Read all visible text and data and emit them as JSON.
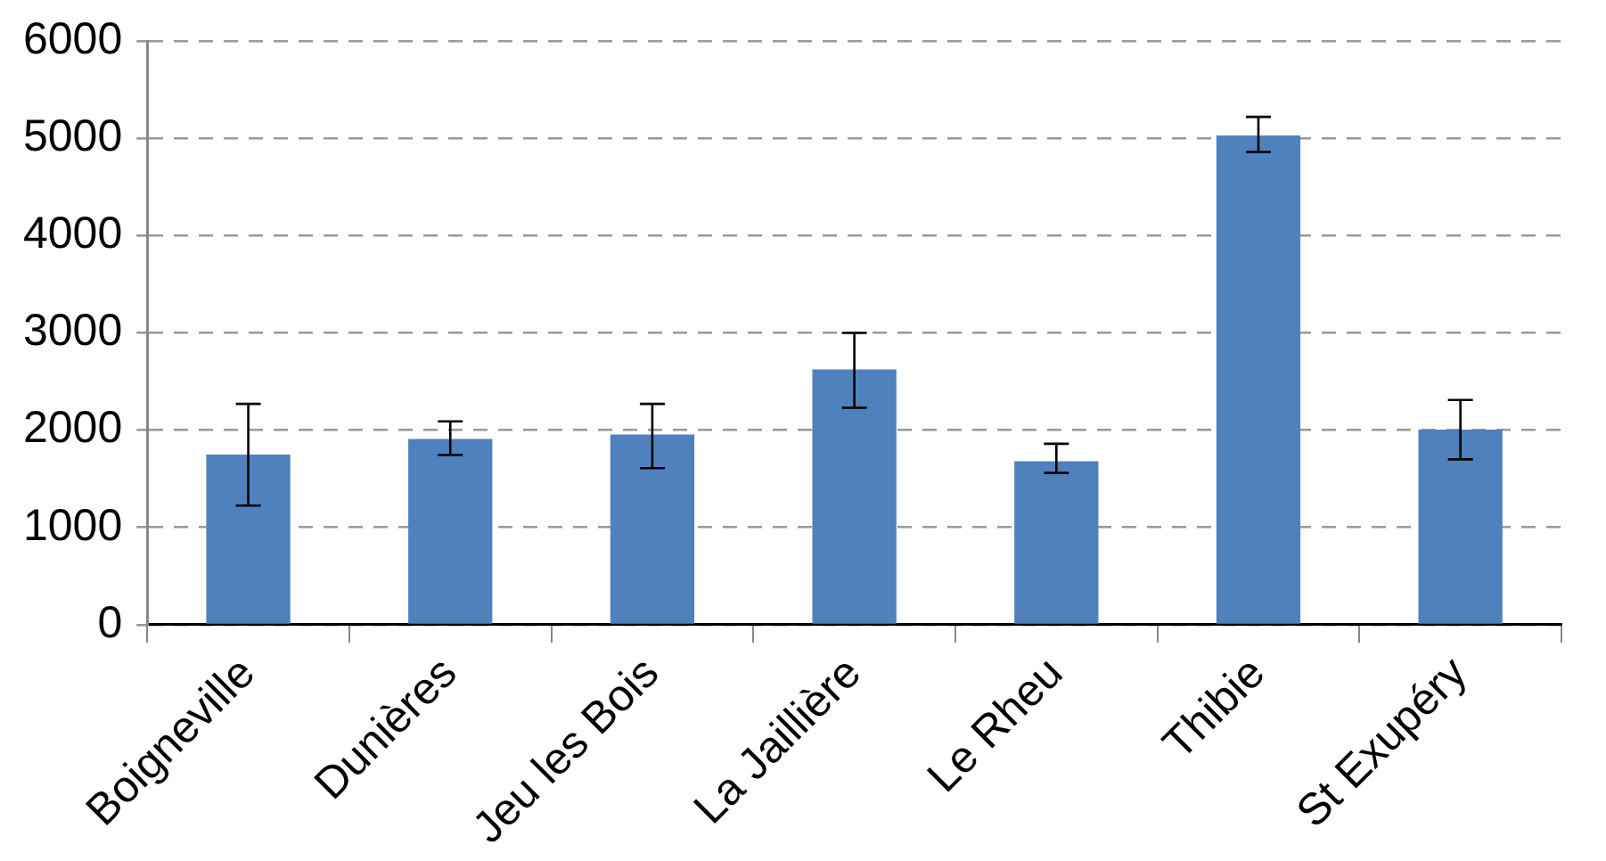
{
  "chart_data": {
    "type": "bar",
    "categories": [
      "Boigneville",
      "Dunières",
      "Jeu les Bois",
      "La Jaillière",
      "Le Rheu",
      "Thibie",
      "St Exupéry"
    ],
    "values": [
      1750,
      1910,
      1955,
      2625,
      1680,
      5030,
      2005
    ],
    "errors": [
      [
        1225,
        2270
      ],
      [
        1745,
        2090
      ],
      [
        1610,
        2270
      ],
      [
        2230,
        3000
      ],
      [
        1560,
        1860
      ],
      [
        4860,
        5220
      ],
      [
        1700,
        2310
      ]
    ],
    "color": "#4f81bd",
    "ylim": [
      0,
      6000
    ],
    "yticks": [
      0,
      1000,
      2000,
      3000,
      4000,
      5000,
      6000
    ],
    "grid": "y",
    "legend": false
  }
}
